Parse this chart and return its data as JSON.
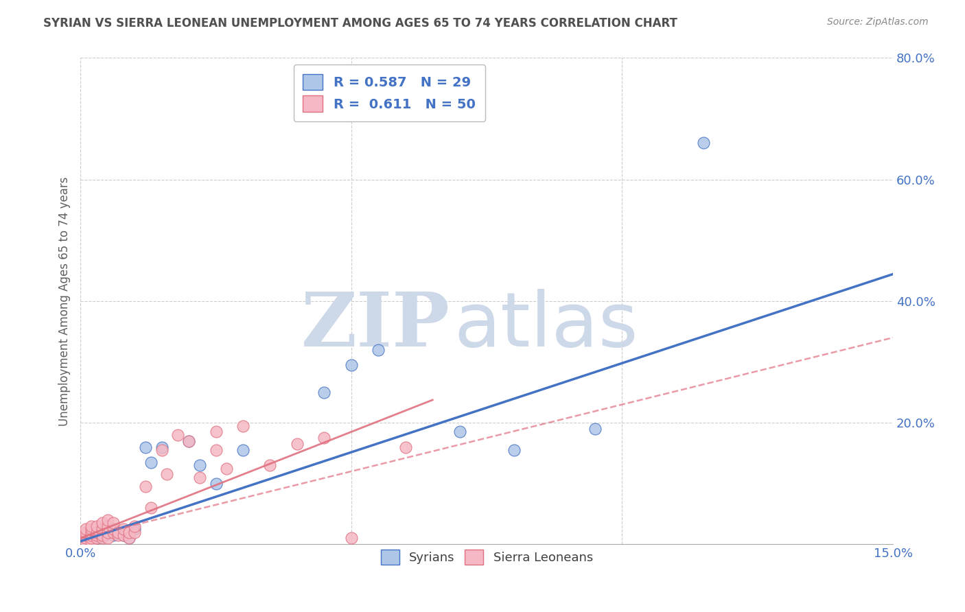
{
  "title": "SYRIAN VS SIERRA LEONEAN UNEMPLOYMENT AMONG AGES 65 TO 74 YEARS CORRELATION CHART",
  "source": "Source: ZipAtlas.com",
  "ylabel": "Unemployment Among Ages 65 to 74 years",
  "xlim": [
    0,
    0.15
  ],
  "ylim": [
    0,
    0.8
  ],
  "syrians_R": 0.587,
  "syrians_N": 29,
  "sierraleoneans_R": 0.611,
  "sierraleoneans_N": 50,
  "syrian_color": "#aec6e8",
  "sierraleone_color": "#f5b8c4",
  "syrian_line_color": "#4472c4",
  "sierraleone_line_color": "#e07080",
  "legend_text_color": "#4472c4",
  "title_color": "#505050",
  "syrians_x": [
    0.001,
    0.001,
    0.002,
    0.002,
    0.003,
    0.003,
    0.004,
    0.004,
    0.005,
    0.005,
    0.006,
    0.007,
    0.008,
    0.009,
    0.01,
    0.012,
    0.013,
    0.015,
    0.02,
    0.022,
    0.025,
    0.03,
    0.045,
    0.05,
    0.055,
    0.07,
    0.08,
    0.095,
    0.115
  ],
  "syrians_y": [
    0.005,
    0.01,
    0.008,
    0.015,
    0.01,
    0.02,
    0.012,
    0.025,
    0.018,
    0.03,
    0.015,
    0.02,
    0.015,
    0.01,
    0.025,
    0.16,
    0.135,
    0.16,
    0.17,
    0.13,
    0.1,
    0.155,
    0.25,
    0.295,
    0.32,
    0.185,
    0.155,
    0.19,
    0.66
  ],
  "sierraleoneans_x": [
    0.001,
    0.001,
    0.001,
    0.001,
    0.001,
    0.002,
    0.002,
    0.002,
    0.002,
    0.002,
    0.002,
    0.003,
    0.003,
    0.003,
    0.003,
    0.004,
    0.004,
    0.004,
    0.004,
    0.005,
    0.005,
    0.005,
    0.005,
    0.006,
    0.006,
    0.006,
    0.007,
    0.007,
    0.008,
    0.008,
    0.009,
    0.009,
    0.01,
    0.01,
    0.012,
    0.013,
    0.015,
    0.016,
    0.018,
    0.02,
    0.022,
    0.025,
    0.025,
    0.027,
    0.03,
    0.035,
    0.04,
    0.045,
    0.05,
    0.06
  ],
  "sierraleoneans_y": [
    0.005,
    0.01,
    0.015,
    0.02,
    0.025,
    0.005,
    0.01,
    0.015,
    0.02,
    0.025,
    0.03,
    0.01,
    0.015,
    0.02,
    0.03,
    0.01,
    0.015,
    0.025,
    0.035,
    0.01,
    0.02,
    0.03,
    0.04,
    0.02,
    0.025,
    0.035,
    0.015,
    0.02,
    0.015,
    0.025,
    0.01,
    0.02,
    0.02,
    0.03,
    0.095,
    0.06,
    0.155,
    0.115,
    0.18,
    0.17,
    0.11,
    0.155,
    0.185,
    0.125,
    0.195,
    0.13,
    0.165,
    0.175,
    0.01,
    0.16
  ],
  "background_color": "#ffffff",
  "grid_color": "#cccccc",
  "watermark_zip": "ZIP",
  "watermark_atlas": "atlas",
  "watermark_color": "#cdd8e8"
}
